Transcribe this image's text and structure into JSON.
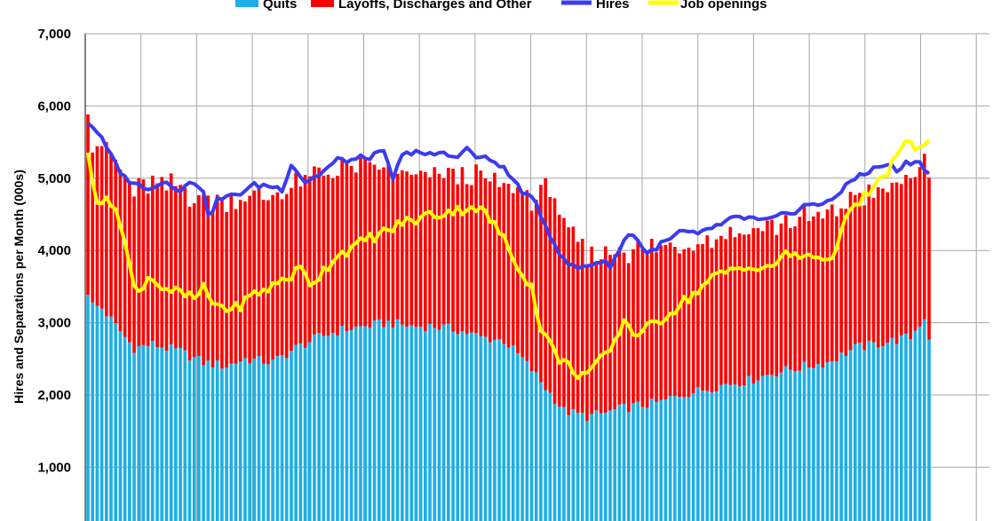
{
  "chart_data": {
    "type": "bar",
    "title": "",
    "ylabel": "Hires and Separations per Month (000s)",
    "xlabel": "",
    "ylim": [
      0,
      7000
    ],
    "y_ticks": [
      "1,000",
      "2,000",
      "3,000",
      "4,000",
      "5,000",
      "6,000",
      "7,000"
    ],
    "y_tick_values": [
      1000,
      2000,
      3000,
      4000,
      5000,
      6000,
      7000
    ],
    "grid": true,
    "legend_position": "top",
    "legend": [
      {
        "label": "Quits",
        "kind": "bar",
        "color": "#1eaee6"
      },
      {
        "label": "Layoffs, Discharges and Other",
        "kind": "bar",
        "color": "#ff0000"
      },
      {
        "label": "Hires",
        "kind": "line",
        "color": "#3b3bf0"
      },
      {
        "label": "Job openings",
        "kind": "line",
        "color": "#ffff00"
      }
    ],
    "n_months": 183,
    "x_gridline_every": 12,
    "colors": {
      "quits": "#1eaee6",
      "layoffs": "#ff0000",
      "hires": "#3b3bf0",
      "openings": "#ffff00",
      "grid": "#a6a6a6"
    },
    "anchors": {
      "quits": [
        [
          0,
          3430
        ],
        [
          1,
          3250
        ],
        [
          3,
          3200
        ],
        [
          8,
          2800
        ],
        [
          10,
          2650
        ],
        [
          14,
          2700
        ],
        [
          20,
          2600
        ],
        [
          25,
          2450
        ],
        [
          30,
          2400
        ],
        [
          34,
          2500
        ],
        [
          40,
          2450
        ],
        [
          45,
          2650
        ],
        [
          50,
          2800
        ],
        [
          55,
          2900
        ],
        [
          60,
          2950
        ],
        [
          65,
          3000
        ],
        [
          70,
          2950
        ],
        [
          75,
          2950
        ],
        [
          80,
          2900
        ],
        [
          85,
          2800
        ],
        [
          90,
          2750
        ],
        [
          94,
          2500
        ],
        [
          96,
          2350
        ],
        [
          99,
          2100
        ],
        [
          103,
          1780
        ],
        [
          108,
          1700
        ],
        [
          112,
          1750
        ],
        [
          116,
          1820
        ],
        [
          120,
          1860
        ],
        [
          124,
          1900
        ],
        [
          128,
          2000
        ],
        [
          133,
          2070
        ],
        [
          138,
          2150
        ],
        [
          143,
          2200
        ],
        [
          148,
          2300
        ],
        [
          154,
          2380
        ],
        [
          160,
          2450
        ],
        [
          166,
          2650
        ],
        [
          172,
          2720
        ],
        [
          178,
          2800
        ],
        [
          181,
          3080
        ],
        [
          182,
          2800
        ]
      ],
      "layoffs": [
        [
          0,
          2640
        ],
        [
          1,
          2200
        ],
        [
          3,
          2300
        ],
        [
          8,
          2200
        ],
        [
          12,
          2200
        ],
        [
          20,
          2250
        ],
        [
          25,
          2250
        ],
        [
          30,
          2300
        ],
        [
          35,
          2250
        ],
        [
          40,
          2300
        ],
        [
          45,
          2250
        ],
        [
          50,
          2250
        ],
        [
          55,
          2250
        ],
        [
          60,
          2200
        ],
        [
          65,
          2100
        ],
        [
          70,
          2050
        ],
        [
          75,
          2100
        ],
        [
          80,
          2150
        ],
        [
          85,
          2200
        ],
        [
          90,
          2150
        ],
        [
          93,
          2250
        ],
        [
          97,
          2400
        ],
        [
          99,
          2800
        ],
        [
          101,
          2900
        ],
        [
          103,
          2500
        ],
        [
          106,
          2350
        ],
        [
          108,
          2200
        ],
        [
          112,
          2200
        ],
        [
          116,
          2200
        ],
        [
          120,
          2150
        ],
        [
          126,
          2100
        ],
        [
          132,
          2100
        ],
        [
          138,
          2100
        ],
        [
          144,
          2100
        ],
        [
          150,
          2050
        ],
        [
          156,
          2050
        ],
        [
          162,
          2050
        ],
        [
          168,
          2100
        ],
        [
          172,
          2100
        ],
        [
          176,
          2150
        ],
        [
          180,
          2250
        ],
        [
          182,
          2100
        ]
      ],
      "hires": [
        [
          0,
          5780
        ],
        [
          2,
          5650
        ],
        [
          5,
          5300
        ],
        [
          8,
          5000
        ],
        [
          10,
          4950
        ],
        [
          12,
          4850
        ],
        [
          14,
          4900
        ],
        [
          17,
          4950
        ],
        [
          20,
          4850
        ],
        [
          23,
          4950
        ],
        [
          25,
          4850
        ],
        [
          26,
          4450
        ],
        [
          28,
          4700
        ],
        [
          31,
          4750
        ],
        [
          33,
          4800
        ],
        [
          36,
          4900
        ],
        [
          39,
          4900
        ],
        [
          42,
          4850
        ],
        [
          44,
          5200
        ],
        [
          47,
          4950
        ],
        [
          50,
          5050
        ],
        [
          54,
          5250
        ],
        [
          57,
          5250
        ],
        [
          61,
          5300
        ],
        [
          64,
          5350
        ],
        [
          66,
          5000
        ],
        [
          68,
          5300
        ],
        [
          71,
          5400
        ],
        [
          73,
          5300
        ],
        [
          76,
          5350
        ],
        [
          79,
          5300
        ],
        [
          82,
          5400
        ],
        [
          84,
          5300
        ],
        [
          87,
          5250
        ],
        [
          89,
          5200
        ],
        [
          91,
          5050
        ],
        [
          93,
          4900
        ],
        [
          95,
          4750
        ],
        [
          97,
          4650
        ],
        [
          99,
          4350
        ],
        [
          101,
          4100
        ],
        [
          103,
          3850
        ],
        [
          106,
          3750
        ],
        [
          108,
          3800
        ],
        [
          111,
          3850
        ],
        [
          113,
          3800
        ],
        [
          115,
          4000
        ],
        [
          117,
          4250
        ],
        [
          119,
          4150
        ],
        [
          121,
          3950
        ],
        [
          123,
          4050
        ],
        [
          126,
          4150
        ],
        [
          128,
          4250
        ],
        [
          130,
          4250
        ],
        [
          132,
          4200
        ],
        [
          134,
          4300
        ],
        [
          137,
          4350
        ],
        [
          140,
          4450
        ],
        [
          143,
          4450
        ],
        [
          146,
          4400
        ],
        [
          149,
          4450
        ],
        [
          151,
          4500
        ],
        [
          153,
          4550
        ],
        [
          156,
          4650
        ],
        [
          158,
          4600
        ],
        [
          160,
          4700
        ],
        [
          163,
          4800
        ],
        [
          165,
          4950
        ],
        [
          167,
          5050
        ],
        [
          169,
          5100
        ],
        [
          171,
          5150
        ],
        [
          173,
          5200
        ],
        [
          175,
          5100
        ],
        [
          177,
          5200
        ],
        [
          179,
          5250
        ],
        [
          180,
          5200
        ],
        [
          181,
          5150
        ],
        [
          182,
          5050
        ]
      ],
      "openings": [
        [
          0,
          5400
        ],
        [
          1,
          4900
        ],
        [
          2,
          4650
        ],
        [
          4,
          4800
        ],
        [
          6,
          4500
        ],
        [
          8,
          4200
        ],
        [
          9,
          3800
        ],
        [
          10,
          3500
        ],
        [
          11,
          3400
        ],
        [
          12,
          3450
        ],
        [
          13,
          3700
        ],
        [
          14,
          3600
        ],
        [
          16,
          3500
        ],
        [
          18,
          3450
        ],
        [
          20,
          3400
        ],
        [
          22,
          3350
        ],
        [
          24,
          3350
        ],
        [
          25,
          3550
        ],
        [
          26,
          3300
        ],
        [
          28,
          3250
        ],
        [
          30,
          3200
        ],
        [
          32,
          3200
        ],
        [
          34,
          3300
        ],
        [
          36,
          3400
        ],
        [
          38,
          3450
        ],
        [
          40,
          3500
        ],
        [
          42,
          3600
        ],
        [
          44,
          3650
        ],
        [
          46,
          3750
        ],
        [
          48,
          3550
        ],
        [
          50,
          3650
        ],
        [
          52,
          3800
        ],
        [
          54,
          3950
        ],
        [
          56,
          4000
        ],
        [
          58,
          4050
        ],
        [
          60,
          4150
        ],
        [
          62,
          4200
        ],
        [
          64,
          4250
        ],
        [
          66,
          4300
        ],
        [
          68,
          4400
        ],
        [
          70,
          4400
        ],
        [
          72,
          4450
        ],
        [
          74,
          4500
        ],
        [
          76,
          4500
        ],
        [
          78,
          4550
        ],
        [
          80,
          4550
        ],
        [
          82,
          4600
        ],
        [
          84,
          4600
        ],
        [
          86,
          4500
        ],
        [
          88,
          4350
        ],
        [
          90,
          4150
        ],
        [
          92,
          3900
        ],
        [
          94,
          3700
        ],
        [
          96,
          3500
        ],
        [
          97,
          3150
        ],
        [
          98,
          2950
        ],
        [
          100,
          2700
        ],
        [
          102,
          2500
        ],
        [
          104,
          2400
        ],
        [
          106,
          2300
        ],
        [
          108,
          2300
        ],
        [
          110,
          2400
        ],
        [
          112,
          2550
        ],
        [
          114,
          2700
        ],
        [
          115,
          2900
        ],
        [
          116,
          3050
        ],
        [
          118,
          2850
        ],
        [
          120,
          2900
        ],
        [
          122,
          2950
        ],
        [
          124,
          3050
        ],
        [
          126,
          3150
        ],
        [
          128,
          3250
        ],
        [
          130,
          3350
        ],
        [
          132,
          3450
        ],
        [
          134,
          3550
        ],
        [
          136,
          3650
        ],
        [
          138,
          3700
        ],
        [
          140,
          3750
        ],
        [
          142,
          3800
        ],
        [
          144,
          3750
        ],
        [
          146,
          3700
        ],
        [
          148,
          3800
        ],
        [
          150,
          3900
        ],
        [
          152,
          3950
        ],
        [
          154,
          3900
        ],
        [
          156,
          3950
        ],
        [
          158,
          3950
        ],
        [
          160,
          3800
        ],
        [
          162,
          4100
        ],
        [
          164,
          4400
        ],
        [
          166,
          4600
        ],
        [
          168,
          4750
        ],
        [
          170,
          4850
        ],
        [
          172,
          5000
        ],
        [
          174,
          5200
        ],
        [
          176,
          5400
        ],
        [
          178,
          5500
        ],
        [
          180,
          5400
        ],
        [
          182,
          5550
        ]
      ]
    }
  }
}
